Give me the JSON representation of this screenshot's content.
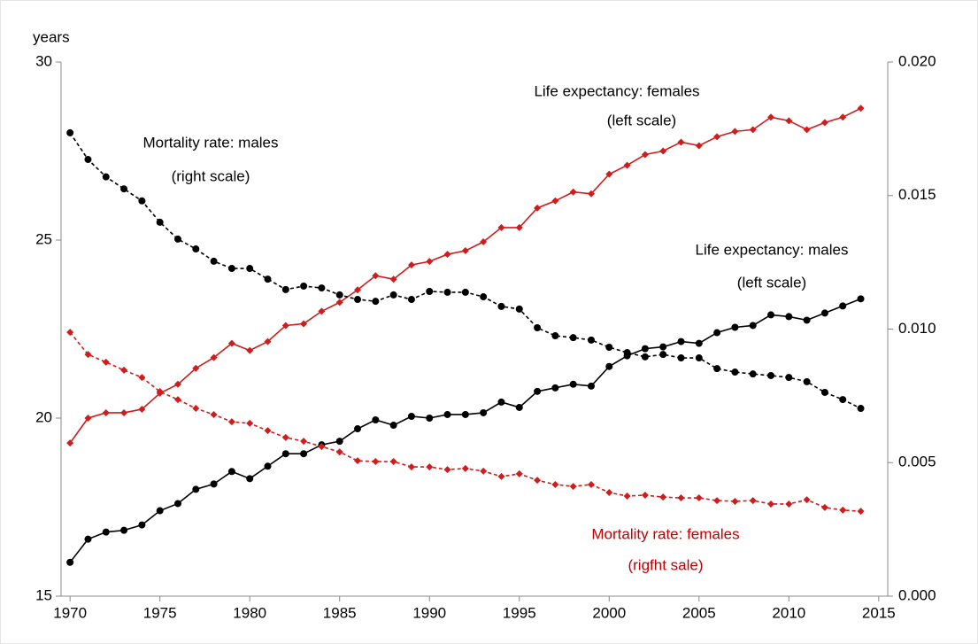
{
  "chart_data": {
    "type": "line",
    "y_axis_label": "years",
    "x": [
      1970,
      1971,
      1972,
      1973,
      1974,
      1975,
      1976,
      1977,
      1978,
      1979,
      1980,
      1981,
      1982,
      1983,
      1984,
      1985,
      1986,
      1987,
      1988,
      1989,
      1990,
      1991,
      1992,
      1993,
      1994,
      1995,
      1996,
      1997,
      1998,
      1999,
      2000,
      2001,
      2002,
      2003,
      2004,
      2005,
      2006,
      2007,
      2008,
      2009,
      2010,
      2011,
      2012,
      2013,
      2014
    ],
    "xlim": [
      1969.5,
      2015.5
    ],
    "xticks": [
      1970,
      1975,
      1980,
      1985,
      1990,
      1995,
      2000,
      2005,
      2010,
      2015
    ],
    "ylim": [
      15,
      30
    ],
    "yticks": [
      15,
      20,
      25,
      30
    ],
    "y2lim": [
      0,
      0.02
    ],
    "y2ticks": [
      {
        "value": 0,
        "label": "0.000"
      },
      {
        "value": 0.005,
        "label": "0.005"
      },
      {
        "value": 0.01,
        "label": "0.010"
      },
      {
        "value": 0.015,
        "label": "0.015"
      },
      {
        "value": 0.02,
        "label": "0.020"
      }
    ],
    "grid": false,
    "series": [
      {
        "name": "Life expectancy: females",
        "color": "#d01c1c",
        "style": "solid",
        "marker": "diamond",
        "axis": "y",
        "values": [
          19.3,
          20.0,
          20.15,
          20.15,
          20.25,
          20.7,
          20.95,
          21.4,
          21.7,
          22.1,
          21.9,
          22.15,
          22.6,
          22.65,
          23.0,
          23.25,
          23.6,
          24.0,
          23.9,
          24.3,
          24.4,
          24.6,
          24.7,
          24.95,
          25.35,
          25.35,
          25.9,
          26.1,
          26.35,
          26.3,
          26.85,
          27.1,
          27.4,
          27.5,
          27.75,
          27.65,
          27.9,
          28.05,
          28.1,
          28.45,
          28.35,
          28.1,
          28.3,
          28.45,
          28.7
        ]
      },
      {
        "name": "Life expectancy: males",
        "color": "#000000",
        "style": "solid",
        "marker": "circle",
        "axis": "y",
        "values": [
          15.95,
          16.6,
          16.8,
          16.85,
          17.0,
          17.4,
          17.6,
          18.0,
          18.15,
          18.5,
          18.3,
          18.65,
          19.0,
          19.0,
          19.25,
          19.35,
          19.7,
          19.95,
          19.8,
          20.05,
          20.0,
          20.1,
          20.1,
          20.15,
          20.45,
          20.3,
          20.75,
          20.85,
          20.95,
          20.9,
          21.45,
          21.75,
          21.95,
          22.0,
          22.15,
          22.1,
          22.4,
          22.55,
          22.6,
          22.9,
          22.85,
          22.75,
          22.95,
          23.15,
          23.35
        ]
      },
      {
        "name": "Mortality rate: males",
        "color": "#000000",
        "style": "dashed",
        "marker": "circle",
        "axis": "y2",
        "values": [
          0.01735,
          0.01635,
          0.0157,
          0.01525,
          0.0148,
          0.014,
          0.01337,
          0.013,
          0.01254,
          0.01227,
          0.01227,
          0.01187,
          0.01148,
          0.01161,
          0.01154,
          0.01128,
          0.01111,
          0.01104,
          0.01128,
          0.01111,
          0.01141,
          0.01138,
          0.01138,
          0.01121,
          0.01085,
          0.01075,
          0.01005,
          0.00975,
          0.00968,
          0.00959,
          0.00932,
          0.00912,
          0.00896,
          0.00905,
          0.00892,
          0.00892,
          0.00852,
          0.00839,
          0.00832,
          0.00826,
          0.00819,
          0.00803,
          0.00763,
          0.00736,
          0.00703
        ]
      },
      {
        "name": "Mortality rate: females",
        "color": "#d01c1c",
        "style": "dashed",
        "marker": "diamond",
        "axis": "y2",
        "values": [
          0.00988,
          0.00905,
          0.00876,
          0.00846,
          0.00819,
          0.00766,
          0.00736,
          0.00703,
          0.0068,
          0.00653,
          0.00647,
          0.0062,
          0.00594,
          0.0058,
          0.0056,
          0.0054,
          0.00507,
          0.00504,
          0.00504,
          0.00484,
          0.00484,
          0.00474,
          0.00478,
          0.00468,
          0.00448,
          0.00458,
          0.00434,
          0.00418,
          0.00411,
          0.00418,
          0.00388,
          0.00375,
          0.00378,
          0.00371,
          0.00368,
          0.00368,
          0.00358,
          0.00355,
          0.00358,
          0.00345,
          0.00345,
          0.00361,
          0.00332,
          0.00322,
          0.00318
        ]
      }
    ],
    "annotations": [
      {
        "lines": [
          "Mortality rate: males",
          "(right scale)"
        ],
        "color": "#000000"
      },
      {
        "lines": [
          "Life expectancy: females",
          "(left scale)"
        ],
        "color": "#000000"
      },
      {
        "lines": [
          "Life expectancy: males",
          "(left scale)"
        ],
        "color": "#000000"
      },
      {
        "lines": [
          "Mortality rate: females",
          "(rigfht sale)"
        ],
        "color": "#c00000"
      }
    ]
  }
}
